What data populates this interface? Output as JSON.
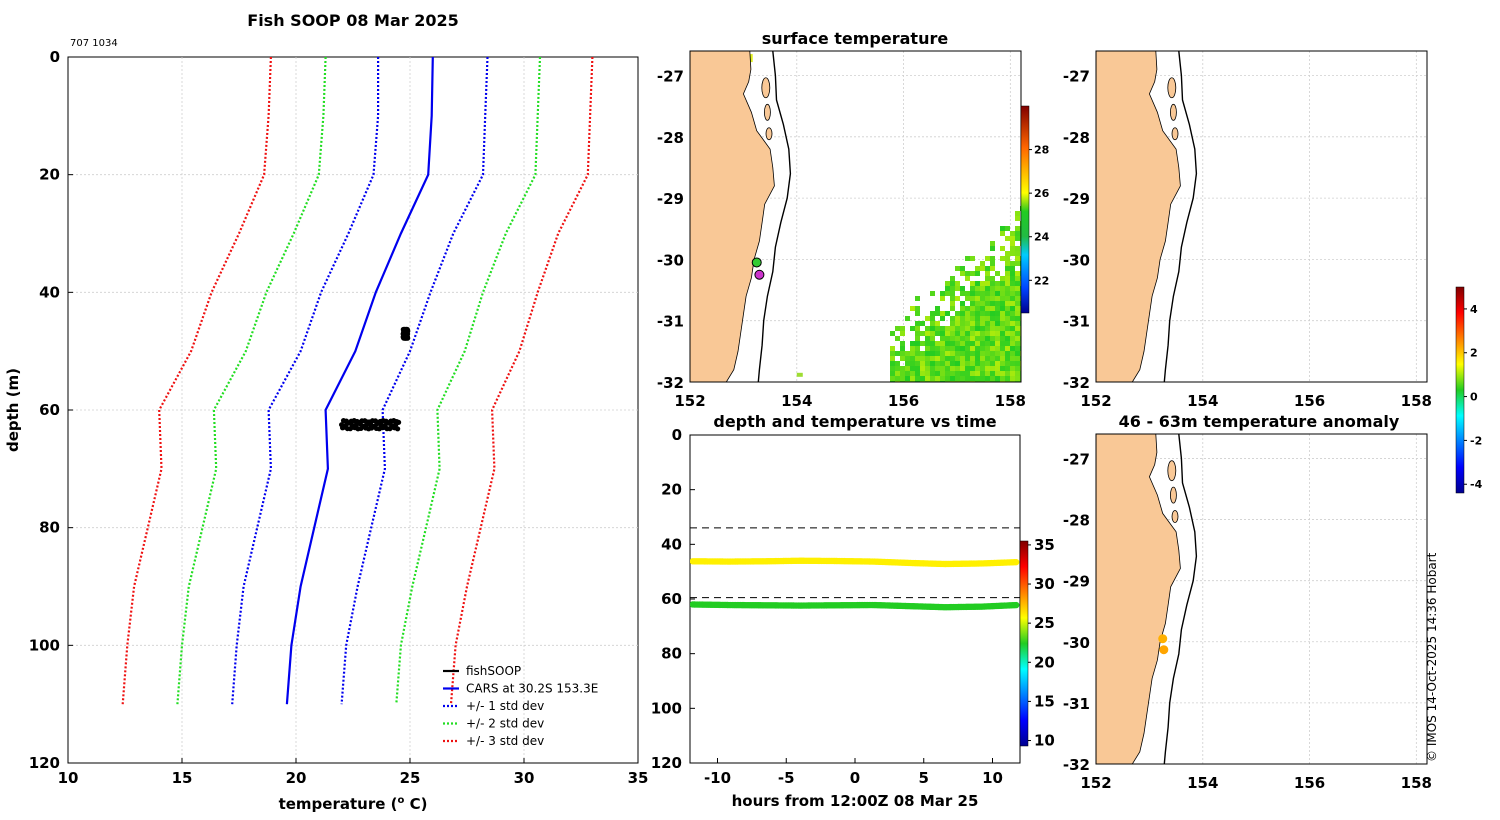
{
  "chart_data": [
    {
      "type": "line",
      "title": "Fish SOOP 08 Mar 2025",
      "id_label": "707 1034",
      "xlabel": "temperature (",
      "xlabel_sup": "o",
      "xlabel_tail": " C)",
      "ylabel": "depth (m)",
      "xlim": [
        10,
        35
      ],
      "ylim": [
        0,
        120
      ],
      "y_reversed": true,
      "xticks": [
        10,
        15,
        20,
        25,
        30,
        35
      ],
      "yticks": [
        0,
        20,
        40,
        60,
        80,
        100,
        120
      ],
      "grid": true,
      "depths": [
        0,
        10,
        20,
        30,
        40,
        50,
        60,
        70,
        80,
        90,
        100,
        110
      ],
      "series": [
        {
          "name": "CARS at 30.2S 153.3E",
          "color": "#0000ee",
          "style": "solid",
          "values": [
            26.0,
            25.95,
            25.8,
            24.6,
            23.5,
            22.6,
            21.3,
            21.4,
            20.8,
            20.2,
            19.8,
            19.6
          ]
        },
        {
          "name": "+/- 1 std dev",
          "color": "#0000ee",
          "style": "dotted",
          "values": [
            28.4,
            28.3,
            28.2,
            26.9,
            25.9,
            25.0,
            23.8,
            23.9,
            23.3,
            22.7,
            22.2,
            22.0
          ]
        },
        {
          "name": "+/- 1 std dev",
          "color": "#0000ee",
          "style": "dotted",
          "values": [
            23.6,
            23.6,
            23.4,
            22.3,
            21.1,
            20.2,
            18.8,
            18.9,
            18.3,
            17.7,
            17.4,
            17.2
          ]
        },
        {
          "name": "+/- 2 std dev",
          "color": "#22dd22",
          "style": "dotted",
          "values": [
            30.7,
            30.6,
            30.5,
            29.2,
            28.2,
            27.4,
            26.2,
            26.3,
            25.7,
            25.1,
            24.6,
            24.4
          ]
        },
        {
          "name": "+/- 2 std dev",
          "color": "#22dd22",
          "style": "dotted",
          "values": [
            21.3,
            21.2,
            21.0,
            19.9,
            18.7,
            17.8,
            16.4,
            16.5,
            15.9,
            15.3,
            15.0,
            14.8
          ]
        },
        {
          "name": "+/- 3 std dev",
          "color": "#ee1111",
          "style": "dotted",
          "values": [
            33.0,
            32.9,
            32.8,
            31.5,
            30.6,
            29.8,
            28.6,
            28.7,
            28.1,
            27.5,
            27.0,
            26.8
          ]
        },
        {
          "name": "+/- 3 std dev",
          "color": "#ee1111",
          "style": "dotted",
          "values": [
            18.9,
            18.8,
            18.6,
            17.5,
            16.3,
            15.4,
            14.0,
            14.1,
            13.5,
            12.9,
            12.6,
            12.4
          ]
        }
      ],
      "fishsoop_clusters": [
        {
          "depth_min": 46.3,
          "depth_max": 47.8,
          "temp_min": 24.7,
          "temp_max": 24.9
        },
        {
          "depth_min": 61.8,
          "depth_max": 63.2,
          "temp_min": 22.0,
          "temp_max": 24.5
        }
      ],
      "legend": [
        "fishSOOP",
        "CARS at 30.2S 153.3E",
        "+/- 1 std dev",
        "+/- 2 std dev",
        "+/- 3 std dev"
      ],
      "legend_colors": [
        "#000000",
        "#0000ee",
        "#0000ee",
        "#22dd22",
        "#ee1111"
      ],
      "legend_position": "bottom-right"
    },
    {
      "type": "heatmap",
      "title": "surface temperature",
      "xlim": [
        152,
        158.2
      ],
      "ylim": [
        -32,
        -26.6
      ],
      "xticks": [
        152,
        154,
        156,
        158
      ],
      "yticks": [
        -27,
        -28,
        -29,
        -30,
        -31,
        -32
      ],
      "colorbar_ticks": [
        22,
        24,
        26,
        28
      ],
      "colorbar_range": [
        20.5,
        30.0
      ],
      "markers": [
        {
          "lon": 153.25,
          "lat": -30.05,
          "color": "#33cc33"
        },
        {
          "lon": 153.3,
          "lat": -30.25,
          "color": "#cc33cc"
        }
      ]
    },
    {
      "type": "scatter",
      "title": "",
      "xlim": [
        -12,
        12
      ],
      "ylim": [
        0,
        120
      ],
      "xticks": [
        -10,
        -5,
        0,
        5,
        10
      ],
      "yticks": [
        0,
        20,
        40,
        60,
        80,
        100,
        120
      ],
      "dashed_lines_depth": [
        34,
        59.5
      ],
      "series": [
        {
          "name": "upper",
          "depths": [
            46.2,
            46.3,
            46.2,
            46.0,
            46.1,
            46.3,
            46.8,
            47.2,
            47.0,
            46.5
          ],
          "temp": 26
        },
        {
          "name": "lower",
          "depths": [
            62.0,
            62.2,
            62.3,
            62.4,
            62.3,
            62.2,
            62.6,
            63.0,
            62.8,
            62.2
          ],
          "temp": 22.5
        }
      ],
      "colorbar_ticks": [
        10,
        15,
        20,
        25,
        30,
        35
      ],
      "xlabel": "hours from 12:00Z 08 Mar 25",
      "heading": "depth and temperature vs time"
    },
    {
      "type": "heatmap",
      "title": "",
      "xlim": [
        152,
        158.2
      ],
      "ylim": [
        -32,
        -26.6
      ],
      "xticks": [
        152,
        154,
        156,
        158
      ],
      "yticks": [
        -27,
        -28,
        -29,
        -30,
        -31,
        -32
      ]
    },
    {
      "type": "scatter",
      "title": "46 - 63m temperature anomaly",
      "xlim": [
        152,
        158.2
      ],
      "ylim": [
        -32,
        -26.6
      ],
      "xticks": [
        152,
        154,
        156,
        158
      ],
      "yticks": [
        -27,
        -28,
        -29,
        -30,
        -31,
        -32
      ],
      "points": [
        {
          "lon": 153.25,
          "lat": -29.95,
          "anomaly": 2.2
        },
        {
          "lon": 153.27,
          "lat": -30.13,
          "anomaly": 2.3
        }
      ],
      "colorbar_ticks": [
        -4,
        -2,
        0,
        2,
        4
      ],
      "colorbar_range": [
        -4.4,
        5.0
      ]
    }
  ],
  "credit": "© IMOS 14-Oct-2025 14:36 Hobart"
}
